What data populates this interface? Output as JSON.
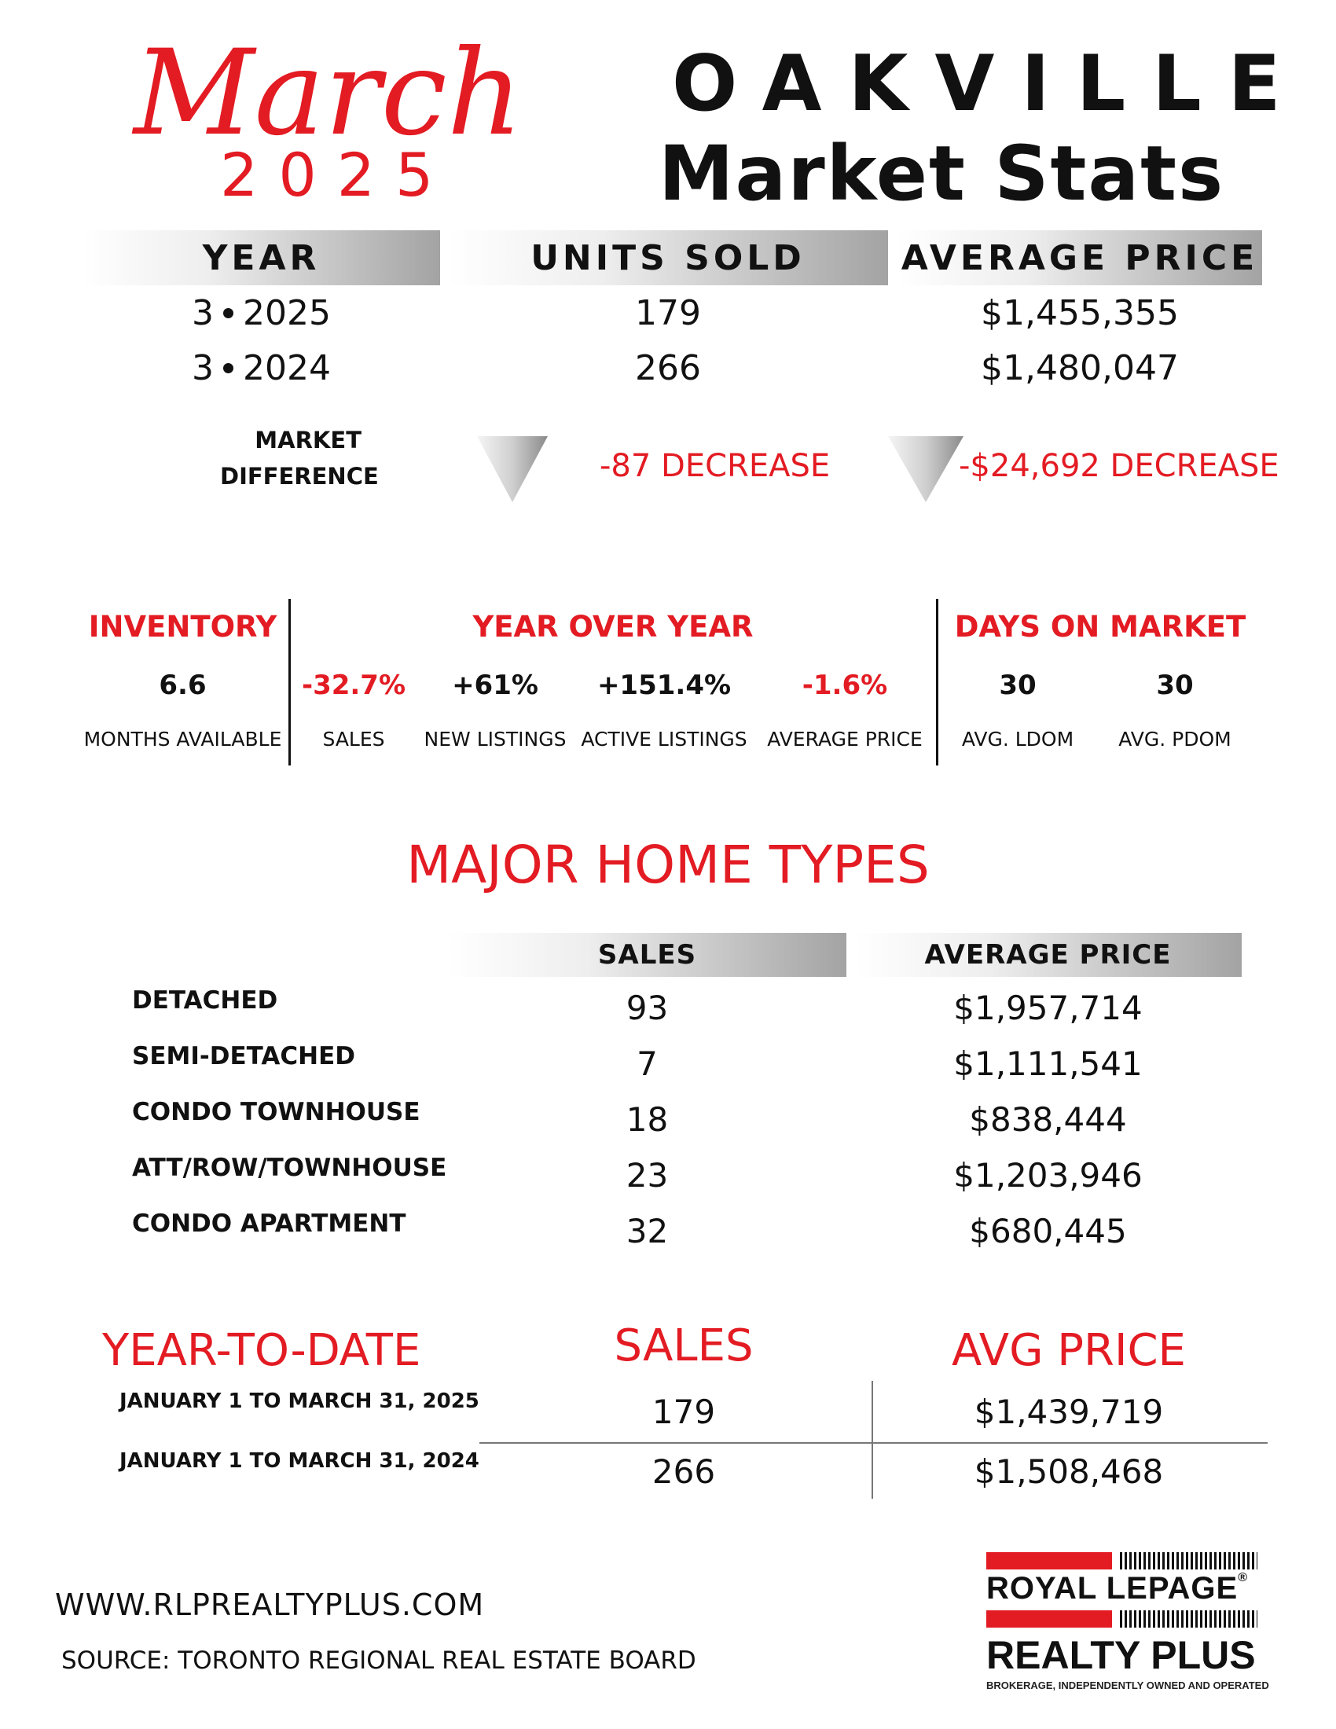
{
  "header": {
    "month": "March",
    "year": "2025",
    "city": "OAKVILLE",
    "subtitle": "Market Stats"
  },
  "summary": {
    "headers": [
      "YEAR",
      "UNITS SOLD",
      "AVERAGE PRICE"
    ],
    "rows": [
      {
        "month": "3",
        "year": "2025",
        "units": "179",
        "price": "$1,455,355"
      },
      {
        "month": "3",
        "year": "2024",
        "units": "266",
        "price": "$1,480,047"
      }
    ],
    "difference_label_1": "MARKET",
    "difference_label_2": "DIFFERENCE",
    "units_diff": "-87 DECREASE",
    "price_diff": "-$24,692 DECREASE"
  },
  "stats": {
    "inventory_head": "INVENTORY",
    "yoy_head": "YEAR OVER YEAR",
    "dom_head": "DAYS ON MARKET",
    "inventory": {
      "value": "6.6",
      "label": "MONTHS AVAILABLE"
    },
    "yoy": [
      {
        "value": "-32.7%",
        "label": "SALES",
        "color": "#e31b23"
      },
      {
        "value": "+61%",
        "label": "NEW LISTINGS",
        "color": "#111111"
      },
      {
        "value": "+151.4%",
        "label": "ACTIVE LISTINGS",
        "color": "#111111"
      },
      {
        "value": "-1.6%",
        "label": "AVERAGE PRICE",
        "color": "#e31b23"
      }
    ],
    "dom": [
      {
        "value": "30",
        "label": "AVG. LDOM"
      },
      {
        "value": "30",
        "label": "AVG. PDOM"
      }
    ]
  },
  "home_types": {
    "title": "MAJOR HOME TYPES",
    "headers": [
      "SALES",
      "AVERAGE PRICE"
    ],
    "rows": [
      {
        "type": "DETACHED",
        "sales": "93",
        "price": "$1,957,714"
      },
      {
        "type": "SEMI-DETACHED",
        "sales": "7",
        "price": "$1,111,541"
      },
      {
        "type": "CONDO TOWNHOUSE",
        "sales": "18",
        "price": "$838,444"
      },
      {
        "type": "ATT/ROW/TOWNHOUSE",
        "sales": "23",
        "price": "$1,203,946"
      },
      {
        "type": "CONDO APARTMENT",
        "sales": "32",
        "price": "$680,445"
      }
    ]
  },
  "ytd": {
    "title": "YEAR-TO-DATE",
    "sales_head": "SALES",
    "price_head": "AVG PRICE",
    "rows": [
      {
        "label": "JANUARY 1 TO MARCH 31, 2025",
        "sales": "179",
        "price": "$1,439,719"
      },
      {
        "label": "JANUARY 1 TO MARCH 31, 2024",
        "sales": "266",
        "price": "$1,508,468"
      }
    ]
  },
  "footer": {
    "url": "WWW.RLPREALTYPLUS.COM",
    "source": "SOURCE: TORONTO REGIONAL REAL ESTATE BOARD"
  },
  "logo": {
    "line1": "ROYAL LEPAGE",
    "registered": "®",
    "line2": "REALTY PLUS",
    "line3": "BROKERAGE, INDEPENDENTLY OWNED AND OPERATED"
  },
  "colors": {
    "accent": "#e31b23",
    "text": "#111111"
  }
}
